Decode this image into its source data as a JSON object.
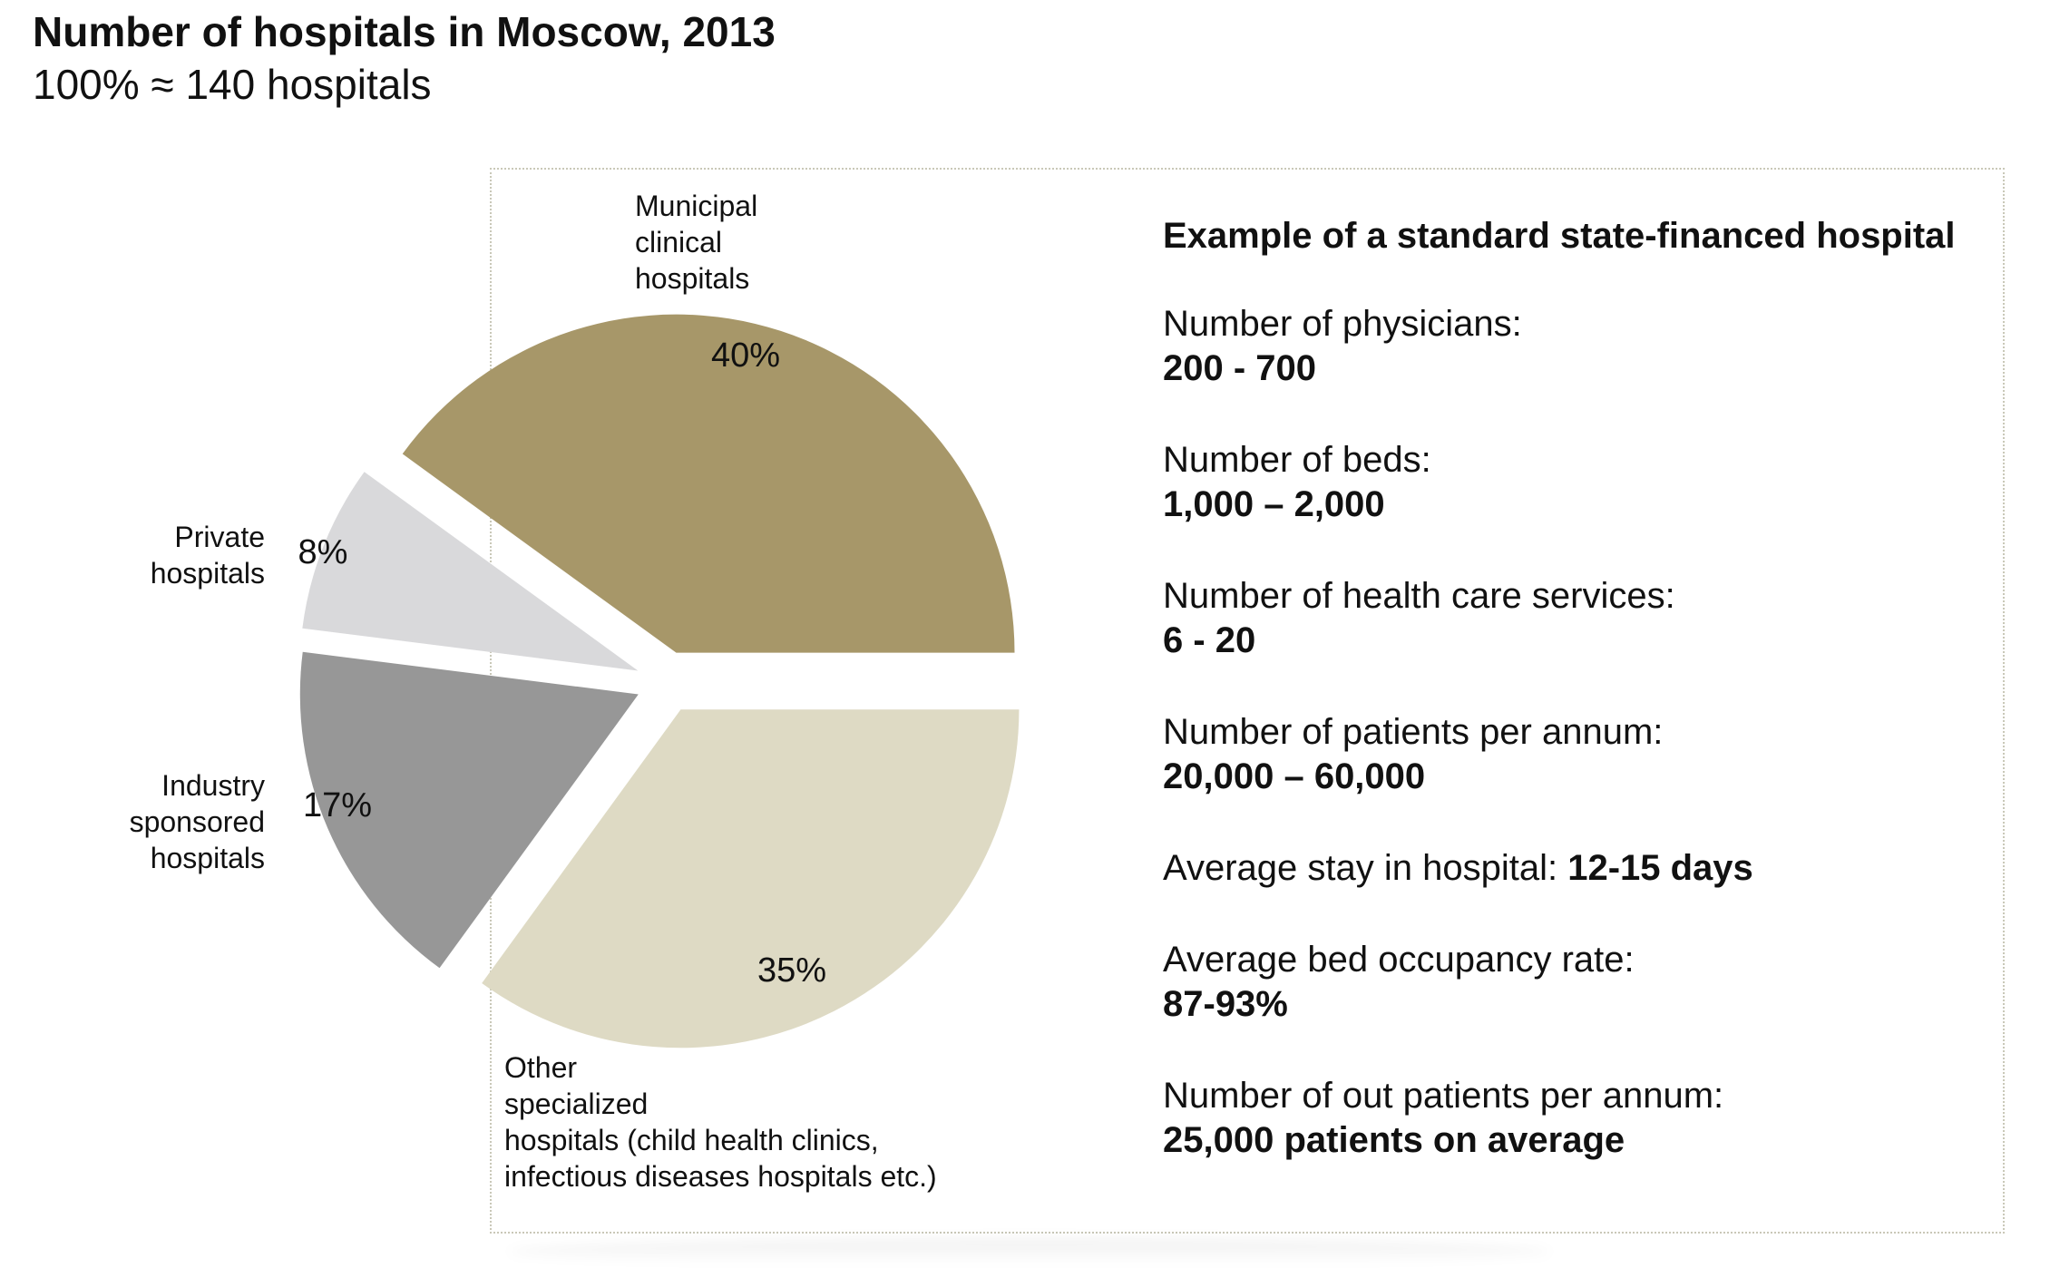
{
  "header": {
    "title": "Number of hospitals in Moscow, 2013",
    "subtitle": "100% ≈ 140 hospitals"
  },
  "chart_data": {
    "type": "pie",
    "title": "Number of hospitals in Moscow, 2013",
    "subtitle": "100% ≈ 140 hospitals",
    "slices": [
      {
        "label": [
          "Municipal",
          "clinical",
          "hospitals"
        ],
        "value": 40,
        "value_label": "40%",
        "color": "#a79769"
      },
      {
        "label": [
          "Other",
          "specialized",
          "hospitals (child health clinics,",
          "infectious diseases hospitals etc.)"
        ],
        "value": 35,
        "value_label": "35%",
        "color": "#dedac4"
      },
      {
        "label": [
          "Industry",
          "sponsored",
          "hospitals"
        ],
        "value": 17,
        "value_label": "17%",
        "color": "#979797"
      },
      {
        "label": [
          "Private",
          "hospitals"
        ],
        "value": 8,
        "value_label": "8%",
        "color": "#d9d9db"
      }
    ]
  },
  "info_panel": {
    "heading": "Example of a standard state-financed hospital",
    "items": [
      {
        "label": "Number of physicians:",
        "value": "200 - 700"
      },
      {
        "label": "Number of beds:",
        "value": "1,000 – 2,000"
      },
      {
        "label": "Number of health care services:",
        "value": "6 - 20"
      },
      {
        "label": "Number of patients per annum:",
        "value": "20,000 – 60,000"
      },
      {
        "label": "Average stay in hospital: ",
        "value": "12-15 days"
      },
      {
        "label": "Average bed occupancy rate:",
        "value": "87-93%"
      },
      {
        "label": "Number of out patients per annum:",
        "value": "25,000 patients on average"
      }
    ]
  }
}
